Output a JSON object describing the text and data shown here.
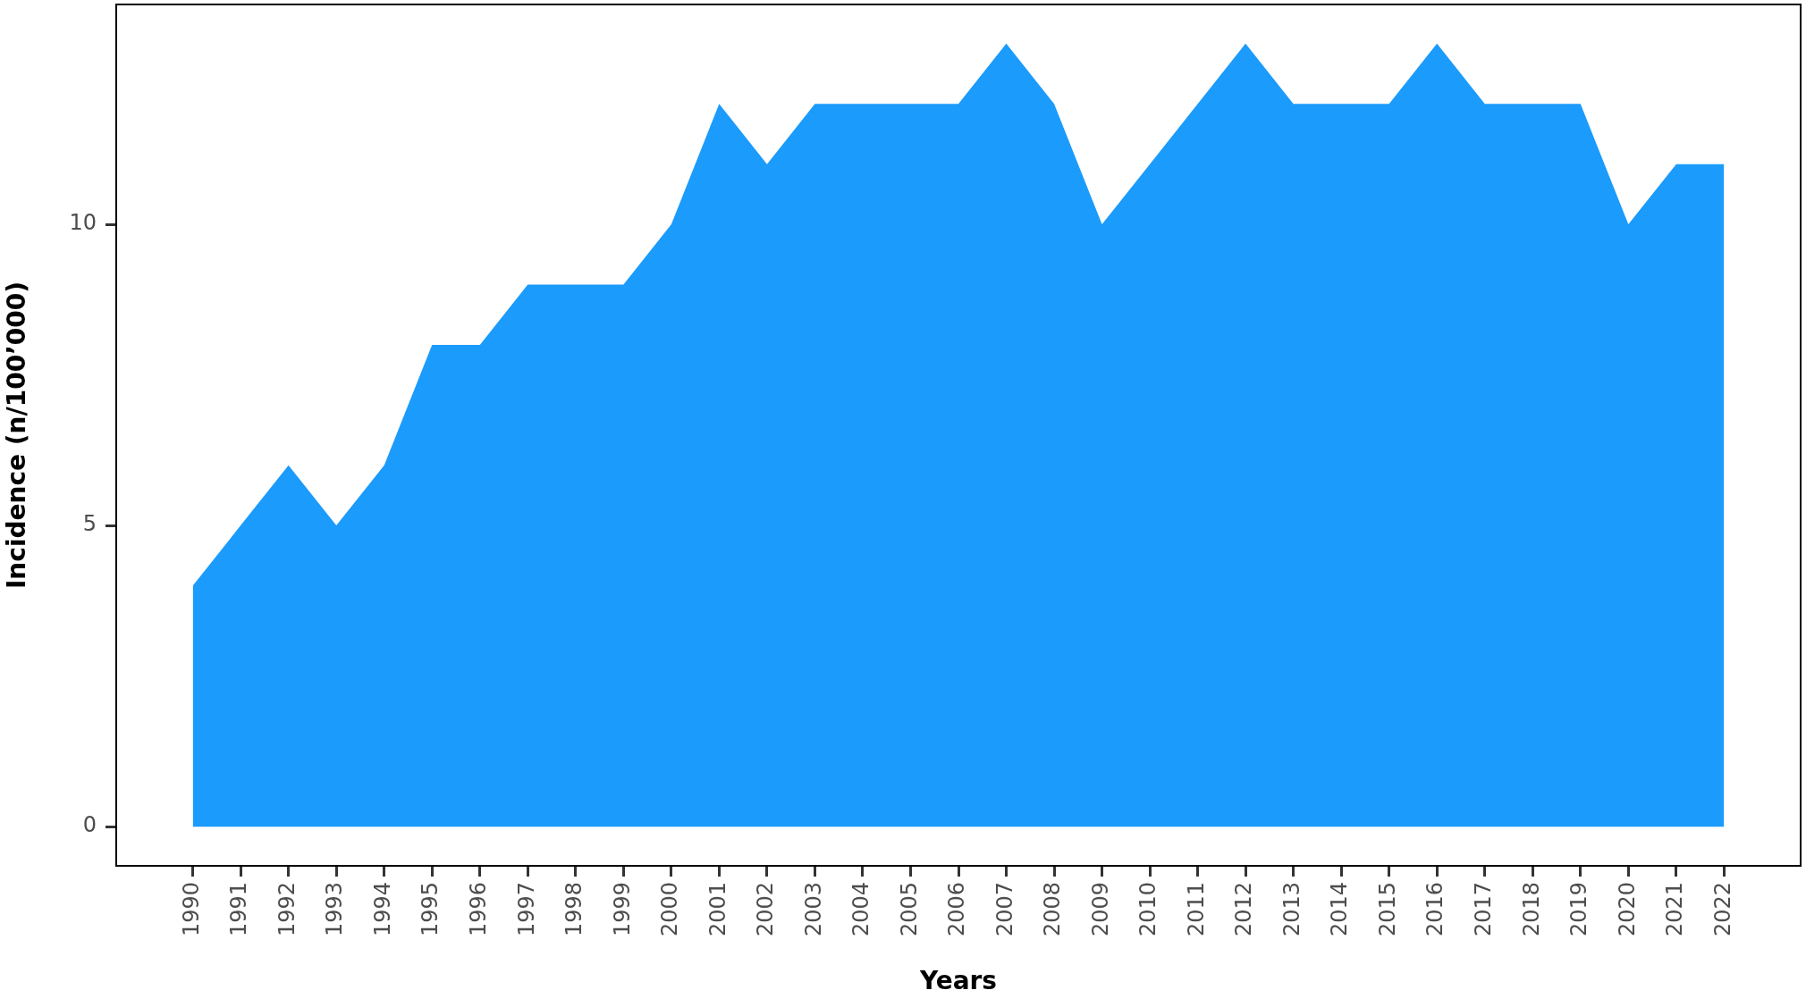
{
  "chart_data": {
    "type": "area",
    "xlabel": "Years",
    "ylabel": "Incidence (n/100’000)",
    "x": [
      1990,
      1991,
      1992,
      1993,
      1994,
      1995,
      1996,
      1997,
      1998,
      1999,
      2000,
      2001,
      2002,
      2003,
      2004,
      2005,
      2006,
      2007,
      2008,
      2009,
      2010,
      2011,
      2012,
      2013,
      2014,
      2015,
      2016,
      2017,
      2018,
      2019,
      2020,
      2021,
      2022
    ],
    "values": [
      4,
      5,
      6,
      5,
      6,
      8,
      8,
      9,
      9,
      9,
      10,
      12,
      11,
      12,
      12,
      12,
      12,
      13,
      12,
      10,
      11,
      12,
      13,
      12,
      12,
      12,
      13,
      12,
      12,
      12,
      10,
      11,
      11
    ],
    "color": "#1b9bfc",
    "xlim": [
      1988.4,
      2023.6
    ],
    "xticks": [
      1990,
      1991,
      1992,
      1993,
      1994,
      1995,
      1996,
      1997,
      1998,
      1999,
      2000,
      2001,
      2002,
      2003,
      2004,
      2005,
      2006,
      2007,
      2008,
      2009,
      2010,
      2011,
      2012,
      2013,
      2014,
      2015,
      2016,
      2017,
      2018,
      2019,
      2020,
      2021,
      2022
    ],
    "ylim": [
      -0.65,
      13.65
    ],
    "yticks": [
      0,
      5,
      10
    ]
  }
}
